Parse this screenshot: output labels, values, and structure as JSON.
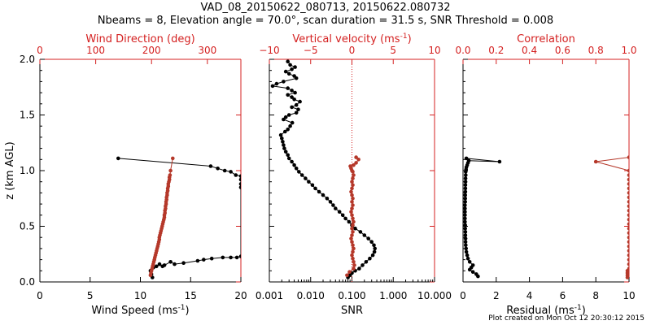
{
  "title_line1": "VAD_08_20150622_080713, 20150622.080732",
  "title_line2": "Nbeams = 8, Elevation angle = 70.0°, scan duration = 31.5 s, SNR Threshold = 0.008",
  "footer": "Plot created on Mon Oct 12 20:30:12 2015",
  "colors": {
    "black": "#000000",
    "red": "#d42020",
    "series_red": "#b5382a"
  },
  "chart_data": [
    {
      "type": "line",
      "ylabel": "z (km AGL)",
      "ylim": [
        0.0,
        2.0
      ],
      "yticks": [
        "0.0",
        "0.5",
        "1.0",
        "1.5",
        "2.0"
      ],
      "bottom_axis": {
        "label": "Wind Speed (ms",
        "sup": "-1",
        "suffix": ")",
        "range": [
          0,
          20
        ],
        "ticks": [
          "0",
          "5",
          "10",
          "15",
          "20"
        ]
      },
      "top_axis": {
        "label": "Wind Direction (deg)",
        "range": [
          0,
          360
        ],
        "ticks": [
          "0",
          "100",
          "200",
          "300"
        ]
      },
      "series": [
        {
          "axis": "bottom",
          "color": "black",
          "x": [
            11.2,
            11.1,
            11.0,
            11.3,
            11.6,
            11.9,
            12.2,
            12.4,
            13.0,
            13.4,
            14.3,
            15.7,
            16.3,
            17.1,
            18.2,
            19.0,
            19.6,
            20.0,
            20.0,
            20.0,
            20.0,
            20.0,
            19.5,
            19.0,
            18.4,
            17.7,
            17.0,
            7.8
          ],
          "y": [
            0.04,
            0.07,
            0.1,
            0.13,
            0.14,
            0.16,
            0.14,
            0.15,
            0.18,
            0.16,
            0.17,
            0.19,
            0.2,
            0.21,
            0.22,
            0.22,
            0.22,
            0.23,
            0.85,
            0.88,
            0.92,
            0.95,
            0.96,
            0.99,
            1.0,
            1.02,
            1.04,
            1.11
          ]
        },
        {
          "axis": "top",
          "color": "series_red",
          "x": [
            198,
            199,
            200,
            201,
            202,
            203,
            204,
            205,
            206,
            207,
            208,
            209,
            210,
            211,
            212,
            213,
            214,
            214,
            215,
            216,
            217,
            218,
            219,
            220,
            221,
            222,
            223,
            223,
            224,
            224,
            225,
            225,
            226,
            226,
            227,
            227,
            228,
            228,
            229,
            229,
            230,
            230,
            231,
            232,
            232,
            233,
            234,
            238
          ],
          "y": [
            0.06,
            0.08,
            0.1,
            0.12,
            0.14,
            0.16,
            0.18,
            0.2,
            0.22,
            0.24,
            0.26,
            0.28,
            0.3,
            0.32,
            0.34,
            0.36,
            0.38,
            0.4,
            0.42,
            0.44,
            0.46,
            0.48,
            0.5,
            0.52,
            0.54,
            0.56,
            0.58,
            0.6,
            0.62,
            0.64,
            0.66,
            0.68,
            0.7,
            0.72,
            0.74,
            0.76,
            0.78,
            0.8,
            0.82,
            0.84,
            0.86,
            0.88,
            0.9,
            0.92,
            0.94,
            0.96,
            1.0,
            1.11
          ]
        }
      ]
    },
    {
      "type": "line",
      "ylim": [
        0.0,
        2.0
      ],
      "bottom_axis": {
        "label": "SNR",
        "scale": "log",
        "range": [
          0.001,
          10
        ],
        "ticks": [
          "0.001",
          "0.010",
          "0.100",
          "1.000",
          "10.000"
        ]
      },
      "top_axis": {
        "label": "Vertical velocity (ms",
        "sup": "-1",
        "suffix": ")",
        "range": [
          -10,
          10
        ],
        "ticks": [
          "−10",
          "−5",
          "0",
          "5",
          "10"
        ]
      },
      "reference_line": {
        "axis": "top",
        "x": 0,
        "style": "dotted"
      },
      "series": [
        {
          "axis": "bottom",
          "color": "black",
          "x": [
            0.08,
            0.09,
            0.1,
            0.12,
            0.15,
            0.18,
            0.22,
            0.27,
            0.32,
            0.35,
            0.36,
            0.34,
            0.3,
            0.25,
            0.2,
            0.16,
            0.12,
            0.1,
            0.085,
            0.07,
            0.06,
            0.05,
            0.04,
            0.035,
            0.03,
            0.025,
            0.02,
            0.016,
            0.013,
            0.011,
            0.009,
            0.0075,
            0.0062,
            0.0052,
            0.0045,
            0.004,
            0.0035,
            0.003,
            0.0028,
            0.0025,
            0.0023,
            0.0022,
            0.0021,
            0.002,
            0.0019,
            0.0024,
            0.0028,
            0.0032,
            0.0036,
            0.0022,
            0.0025,
            0.003,
            0.0045,
            0.005,
            0.0035,
            0.0045,
            0.0055,
            0.004,
            0.0035,
            0.0028,
            0.0042,
            0.0035,
            0.0028,
            0.0012,
            0.0015,
            0.0022,
            0.0045,
            0.004,
            0.003,
            0.0025,
            0.0035,
            0.0042,
            0.0032,
            0.0028
          ],
          "y": [
            0.04,
            0.06,
            0.08,
            0.1,
            0.12,
            0.15,
            0.18,
            0.21,
            0.24,
            0.27,
            0.3,
            0.33,
            0.36,
            0.39,
            0.42,
            0.45,
            0.48,
            0.51,
            0.54,
            0.57,
            0.6,
            0.63,
            0.66,
            0.69,
            0.72,
            0.75,
            0.78,
            0.81,
            0.84,
            0.87,
            0.9,
            0.93,
            0.96,
            0.99,
            1.02,
            1.05,
            1.08,
            1.11,
            1.14,
            1.17,
            1.2,
            1.23,
            1.26,
            1.29,
            1.32,
            1.35,
            1.37,
            1.4,
            1.43,
            1.46,
            1.48,
            1.5,
            1.52,
            1.55,
            1.57,
            1.59,
            1.62,
            1.64,
            1.66,
            1.68,
            1.7,
            1.72,
            1.74,
            1.76,
            1.78,
            1.8,
            1.83,
            1.85,
            1.87,
            1.89,
            1.91,
            1.93,
            1.95,
            1.98
          ]
        },
        {
          "axis": "top",
          "color": "series_red",
          "x": [
            -0.6,
            -0.3,
            0.2,
            0.3,
            0.2,
            0.1,
            0.0,
            0.1,
            0.2,
            0.1,
            0.0,
            -0.1,
            0.0,
            0.1,
            0.0,
            0.1,
            0.2,
            0.1,
            0.0,
            -0.1,
            0.0,
            0.1,
            0.0,
            0.1,
            0.0,
            -0.1,
            0.0,
            0.1,
            0.0,
            0.1,
            0.2,
            0.1,
            0.0,
            -0.1,
            -0.2,
            0.2,
            0.5,
            0.8,
            0.5
          ],
          "y": [
            0.06,
            0.09,
            0.12,
            0.15,
            0.18,
            0.21,
            0.24,
            0.27,
            0.3,
            0.33,
            0.36,
            0.39,
            0.42,
            0.45,
            0.48,
            0.51,
            0.54,
            0.57,
            0.6,
            0.63,
            0.66,
            0.69,
            0.72,
            0.75,
            0.78,
            0.81,
            0.84,
            0.87,
            0.9,
            0.93,
            0.96,
            0.99,
            1.0,
            1.02,
            1.04,
            1.05,
            1.07,
            1.1,
            1.12
          ]
        }
      ]
    },
    {
      "type": "line",
      "ylim": [
        0.0,
        2.0
      ],
      "bottom_axis": {
        "label": "Residual  (ms",
        "sup": "-1",
        "suffix": ")",
        "range": [
          0,
          10
        ],
        "ticks": [
          "0",
          "2",
          "4",
          "6",
          "8",
          "10"
        ]
      },
      "top_axis": {
        "label": "Correlation",
        "range": [
          0.0,
          1.0
        ],
        "ticks": [
          "0.0",
          "0.2",
          "0.4",
          "0.6",
          "0.8",
          "1.0"
        ]
      },
      "series": [
        {
          "axis": "bottom",
          "color": "black",
          "x": [
            0.9,
            0.8,
            0.6,
            0.4,
            0.5,
            0.6,
            0.4,
            0.3,
            0.25,
            0.2,
            0.18,
            0.16,
            0.15,
            0.15,
            0.14,
            0.14,
            0.13,
            0.13,
            0.12,
            0.12,
            0.12,
            0.12,
            0.12,
            0.12,
            0.13,
            0.13,
            0.13,
            0.14,
            0.14,
            0.14,
            0.15,
            0.15,
            0.16,
            0.16,
            0.18,
            0.2,
            0.25,
            0.3,
            0.35,
            2.2,
            0.2
          ],
          "y": [
            0.05,
            0.07,
            0.09,
            0.11,
            0.13,
            0.15,
            0.18,
            0.21,
            0.24,
            0.27,
            0.3,
            0.33,
            0.36,
            0.39,
            0.42,
            0.45,
            0.48,
            0.51,
            0.54,
            0.57,
            0.6,
            0.63,
            0.66,
            0.69,
            0.72,
            0.75,
            0.78,
            0.81,
            0.84,
            0.87,
            0.9,
            0.93,
            0.96,
            0.99,
            1.01,
            1.03,
            1.05,
            1.07,
            1.09,
            1.08,
            1.11
          ]
        },
        {
          "axis": "top",
          "color": "series_red",
          "x": [
            0.99,
            0.99,
            0.99,
            0.99,
            1.0,
            1.0,
            1.0,
            1.0,
            1.0,
            1.0,
            1.0,
            1.0,
            1.0,
            1.0,
            1.0,
            1.0,
            1.0,
            1.0,
            1.0,
            1.0,
            1.0,
            1.0,
            1.0,
            1.0,
            1.0,
            1.0,
            1.0,
            0.8,
            1.0
          ],
          "y": [
            0.04,
            0.06,
            0.08,
            0.1,
            0.12,
            0.16,
            0.2,
            0.24,
            0.28,
            0.32,
            0.36,
            0.4,
            0.44,
            0.48,
            0.52,
            0.56,
            0.6,
            0.64,
            0.68,
            0.72,
            0.76,
            0.8,
            0.84,
            0.88,
            0.92,
            0.96,
            1.0,
            1.08,
            1.12
          ]
        }
      ]
    }
  ]
}
